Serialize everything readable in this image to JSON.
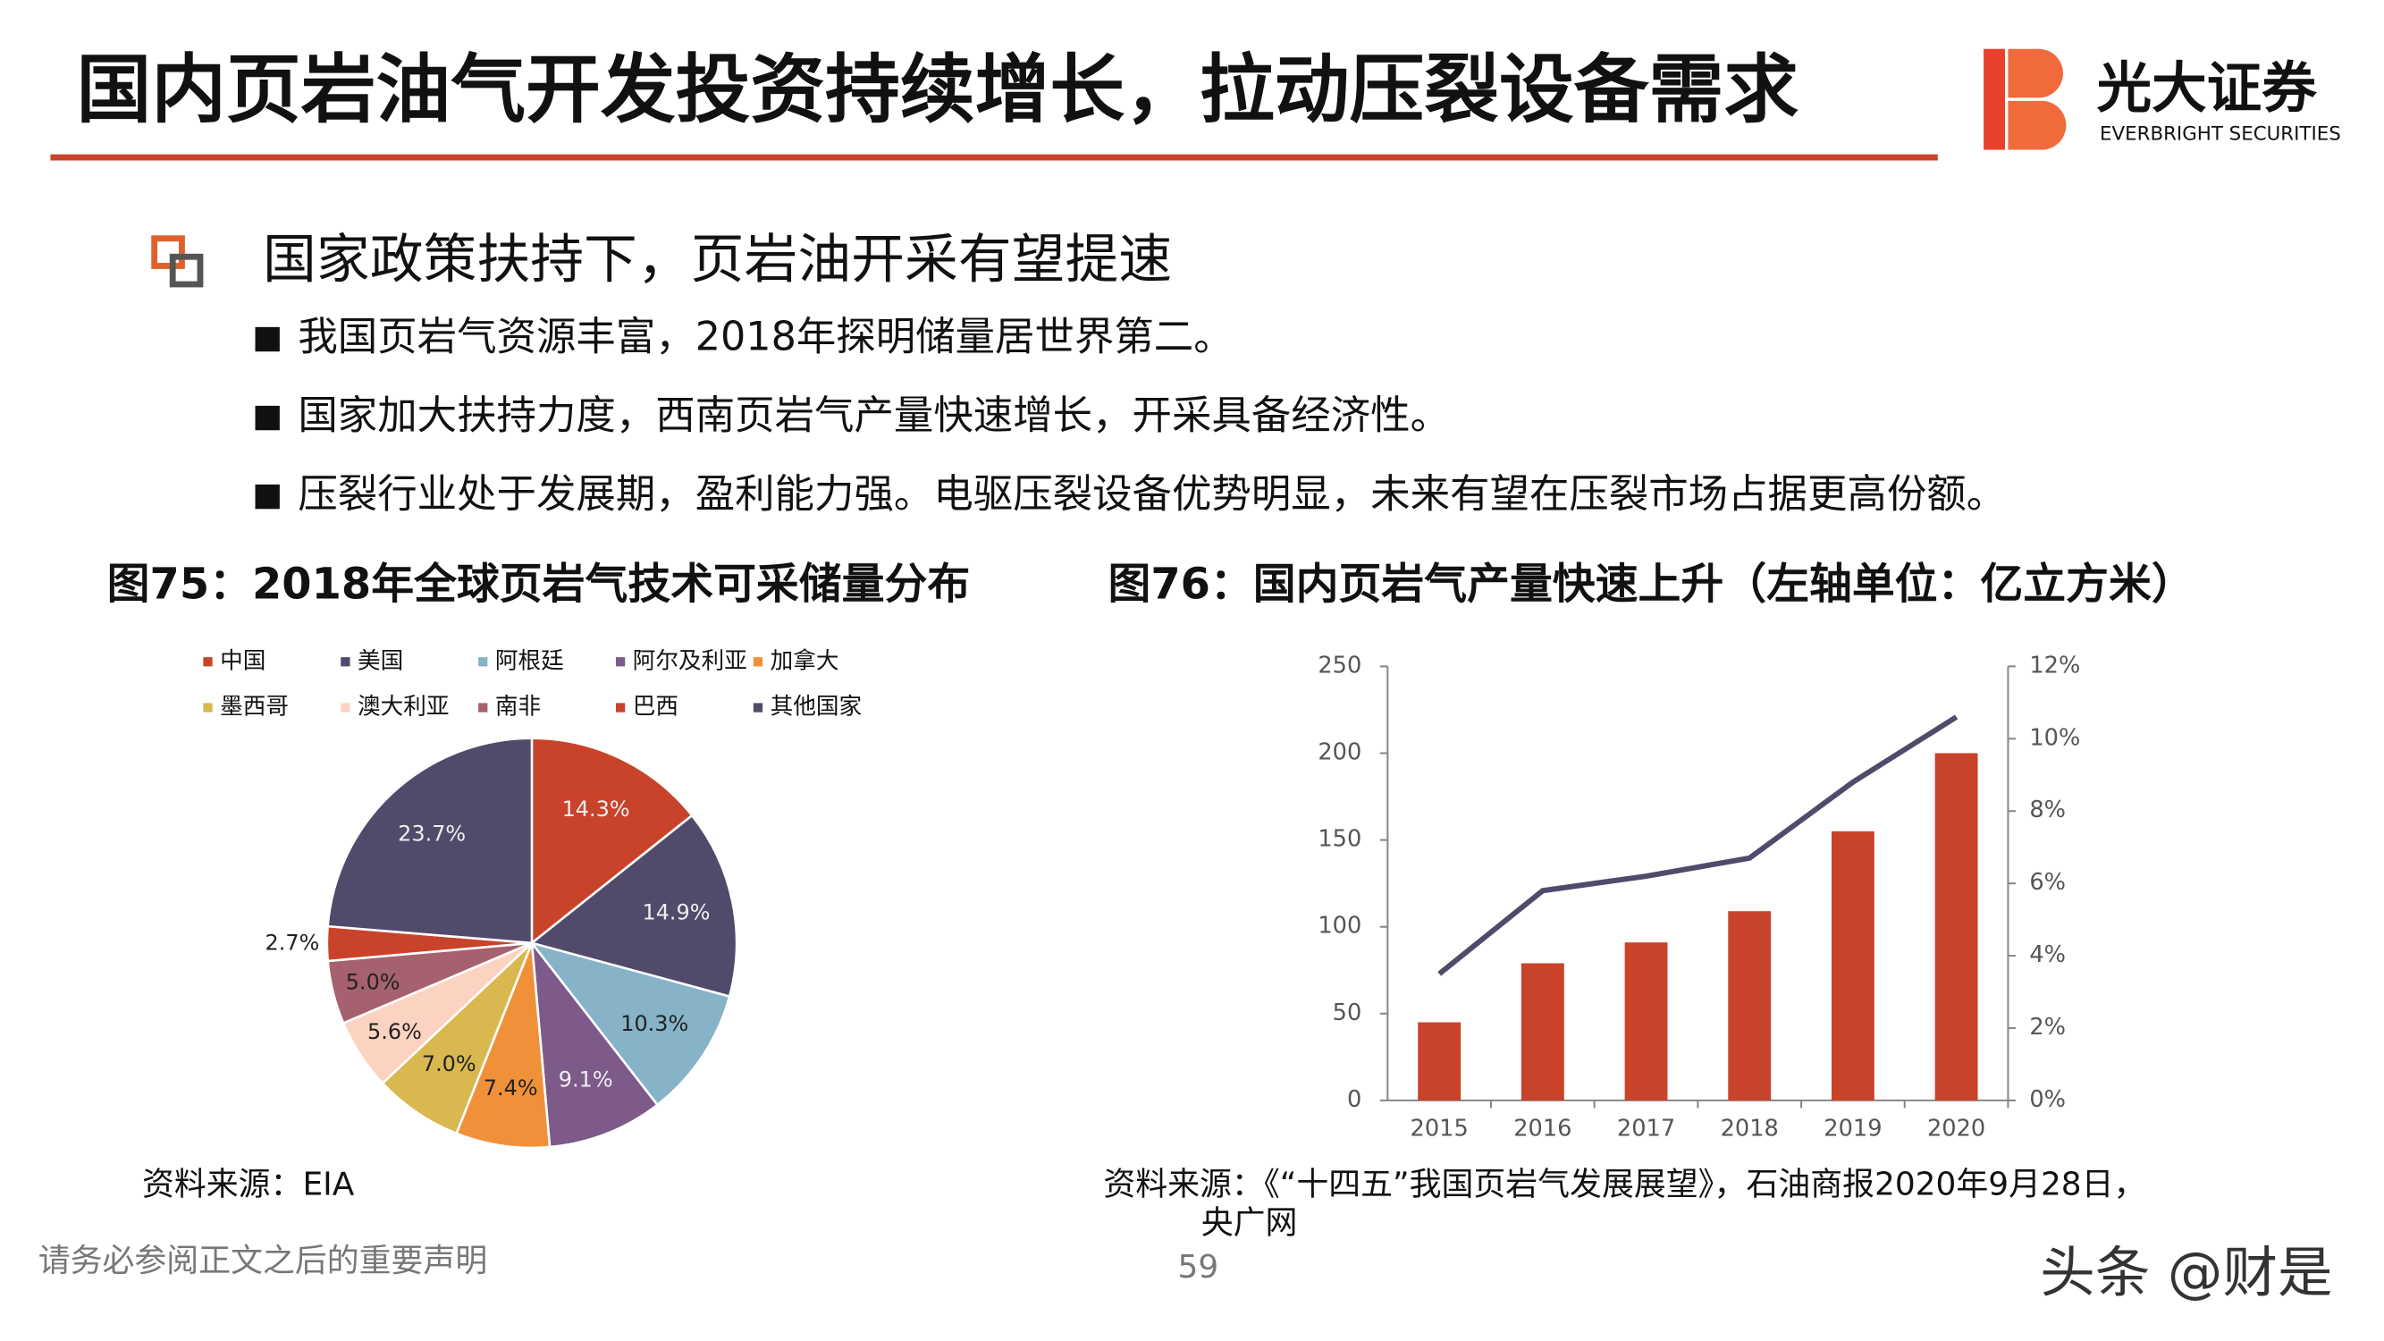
{
  "header": {
    "title": "国内页岩油气开发投资持续增长，拉动压裂设备需求",
    "logo_name": "光大证券",
    "logo_subtitle": "EVERBRIGHT SECURITIES"
  },
  "section": {
    "heading": "国家政策扶持下，页岩油开采有望提速",
    "bullets": [
      "我国页岩气资源丰富，2018年探明储量居世界第二。",
      "国家加大扶持力度，西南页岩气产量快速增长，开采具备经济性。",
      "压裂行业处于发展期，盈利能力强。电驱压裂设备优势明显，未来有望在压裂市场占据更高份额。"
    ]
  },
  "chart_data": [
    {
      "type": "pie",
      "title": "图75：2018年全球页岩气技术可采储量分布",
      "categories": [
        "中国",
        "美国",
        "阿根廷",
        "阿尔及利亚",
        "加拿大",
        "墨西哥",
        "澳大利亚",
        "南非",
        "巴西",
        "其他国家"
      ],
      "values": [
        14.3,
        14.9,
        10.3,
        9.1,
        7.4,
        7.0,
        5.6,
        5.0,
        2.7,
        23.7
      ],
      "value_labels": [
        "14.3%",
        "14.9%",
        "10.3%",
        "9.1%",
        "7.4%",
        "7.0%",
        "5.6%",
        "5.0%",
        "2.7%",
        "23.7%"
      ],
      "colors": [
        "#c8432a",
        "#524a6b",
        "#86b3c8",
        "#7d5a8a",
        "#f0913a",
        "#d9b84f",
        "#fcd3c1",
        "#a6616e",
        "#c8432a",
        "#524a6b"
      ],
      "source": [
        "资料来源：EIA"
      ]
    },
    {
      "type": "bar_line",
      "title": "图76：国内页岩气产量快速上升（左轴单位：亿立方米）",
      "categories": [
        "2015",
        "2016",
        "2017",
        "2018",
        "2019",
        "2020"
      ],
      "series": [
        {
          "type": "bar",
          "color": "#c8432a",
          "values": [
            45,
            79,
            91,
            109,
            155,
            200
          ]
        },
        {
          "type": "line",
          "axis": "y2",
          "color": "#524a6b",
          "values": [
            3.5,
            5.8,
            6.2,
            6.7,
            8.8,
            10.6
          ]
        }
      ],
      "ylim": [
        0,
        250
      ],
      "yticks": [
        0,
        50,
        100,
        150,
        200,
        250
      ],
      "y2lim": [
        0,
        12
      ],
      "y2ticks": [
        {
          "value": 0,
          "label": "0%"
        },
        {
          "value": 2,
          "label": "2%"
        },
        {
          "value": 4,
          "label": "4%"
        },
        {
          "value": 6,
          "label": "6%"
        },
        {
          "value": 8,
          "label": "8%"
        },
        {
          "value": 10,
          "label": "10%"
        },
        {
          "value": 12,
          "label": "12%"
        }
      ],
      "source": [
        "资料来源：《“十四五”我国页岩气发展展望》，石油商报2020年9月28日，",
        "央广网"
      ]
    }
  ],
  "footer": {
    "disclaimer": "请务必参阅正文之后的重要声明",
    "page": "59",
    "watermark": "头条 @财是"
  }
}
